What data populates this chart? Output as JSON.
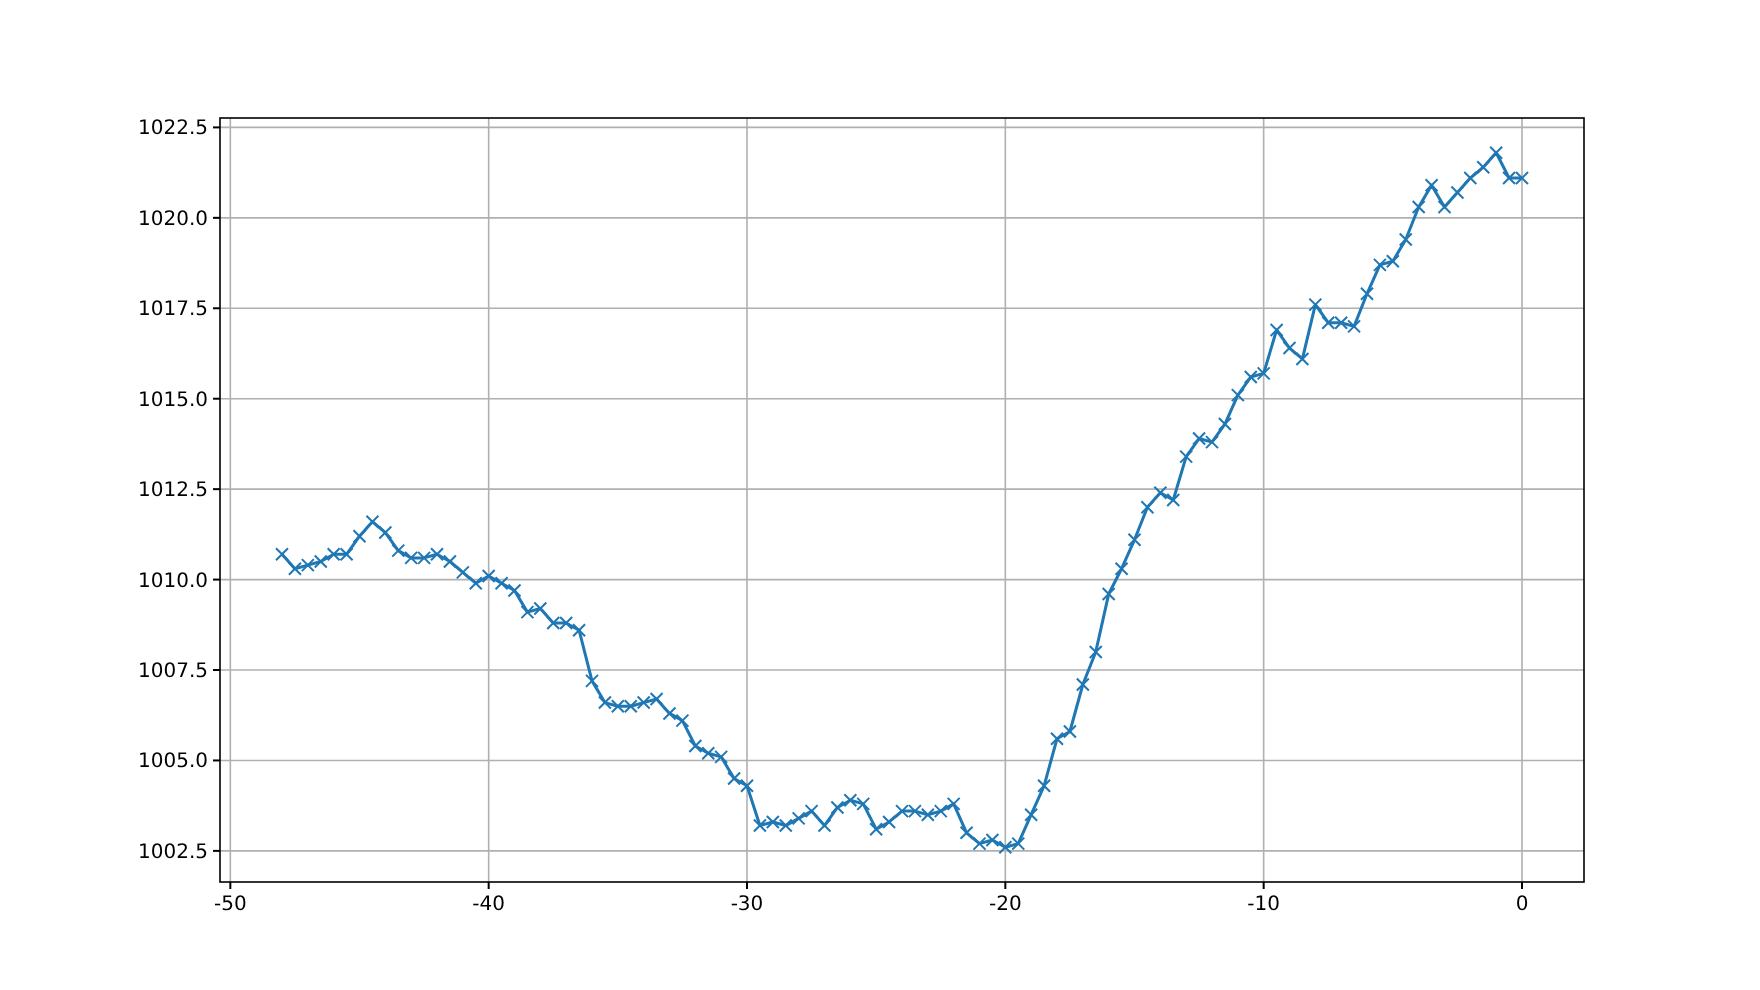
{
  "chart_data": {
    "type": "line",
    "x": [
      -48,
      -47.5,
      -47,
      -46.5,
      -46,
      -45.5,
      -45,
      -44.5,
      -44,
      -43.5,
      -43,
      -42.5,
      -42,
      -41.5,
      -41,
      -40.5,
      -40,
      -39.5,
      -39,
      -38.5,
      -38,
      -37.5,
      -37,
      -36.5,
      -36,
      -35.5,
      -35,
      -34.5,
      -34,
      -33.5,
      -33,
      -32.5,
      -32,
      -31.5,
      -31,
      -30.5,
      -30,
      -29.5,
      -29,
      -28.5,
      -28,
      -27.5,
      -27,
      -26.5,
      -26,
      -25.5,
      -25,
      -24.5,
      -24,
      -23.5,
      -23,
      -22.5,
      -22,
      -21.5,
      -21,
      -20.5,
      -20,
      -19.5,
      -19,
      -18.5,
      -18,
      -17.5,
      -17,
      -16.5,
      -16,
      -15.5,
      -15,
      -14.5,
      -14,
      -13.5,
      -13,
      -12.5,
      -12,
      -11.5,
      -11,
      -10.5,
      -10,
      -9.5,
      -9,
      -8.5,
      -8,
      -7.5,
      -7,
      -6.5,
      -6,
      -5.5,
      -5,
      -4.5,
      -4,
      -3.5,
      -3,
      -2.5,
      -2,
      -1.5,
      -1,
      -0.5,
      0
    ],
    "series": [
      {
        "color": "#1f77b4",
        "values": [
          1010.7,
          1010.3,
          1010.4,
          1010.5,
          1010.7,
          1010.7,
          1011.2,
          1011.6,
          1011.3,
          1010.8,
          1010.6,
          1010.6,
          1010.7,
          1010.5,
          1010.2,
          1009.9,
          1010.1,
          1009.9,
          1009.7,
          1009.1,
          1009.2,
          1008.8,
          1008.8,
          1008.6,
          1007.2,
          1006.6,
          1006.5,
          1006.5,
          1006.6,
          1006.7,
          1006.3,
          1006.1,
          1005.4,
          1005.2,
          1005.1,
          1004.5,
          1004.3,
          1003.2,
          1003.3,
          1003.2,
          1003.4,
          1003.6,
          1003.2,
          1003.7,
          1003.9,
          1003.8,
          1003.1,
          1003.3,
          1003.6,
          1003.6,
          1003.5,
          1003.6,
          1003.8,
          1003.0,
          1002.7,
          1002.8,
          1002.6,
          1002.7,
          1003.5,
          1004.3,
          1005.6,
          1005.8,
          1007.1,
          1008.0,
          1009.6,
          1010.3,
          1011.1,
          1012.0,
          1012.4,
          1012.2,
          1013.4,
          1013.9,
          1013.8,
          1014.3,
          1015.1,
          1015.6,
          1015.7,
          1016.9,
          1016.4,
          1016.1,
          1017.6,
          1017.1,
          1017.1,
          1017.0,
          1017.9,
          1018.7,
          1018.8,
          1019.4,
          1020.3,
          1020.9,
          1020.3,
          1020.7,
          1021.1,
          1021.4,
          1021.8,
          1021.1,
          1021.1
        ]
      }
    ],
    "xlim": [
      -50.4,
      2.4
    ],
    "xticks": [
      -50,
      -40,
      -30,
      -20,
      -10,
      0
    ],
    "ylim": [
      1001.64,
      1022.76
    ],
    "yticks": [
      {
        "value": 1002.5,
        "label": "1002.5"
      },
      {
        "value": 1005,
        "label": "1005.0"
      },
      {
        "value": 1007.5,
        "label": "1007.5"
      },
      {
        "value": 1010,
        "label": "1010.0"
      },
      {
        "value": 1012.5,
        "label": "1012.5"
      },
      {
        "value": 1015,
        "label": "1015.0"
      },
      {
        "value": 1017.5,
        "label": "1017.5"
      },
      {
        "value": 1020,
        "label": "1020.0"
      },
      {
        "value": 1022.5,
        "label": "1022.5"
      }
    ],
    "grid": true,
    "marker": "cross",
    "line_style": "solid"
  }
}
